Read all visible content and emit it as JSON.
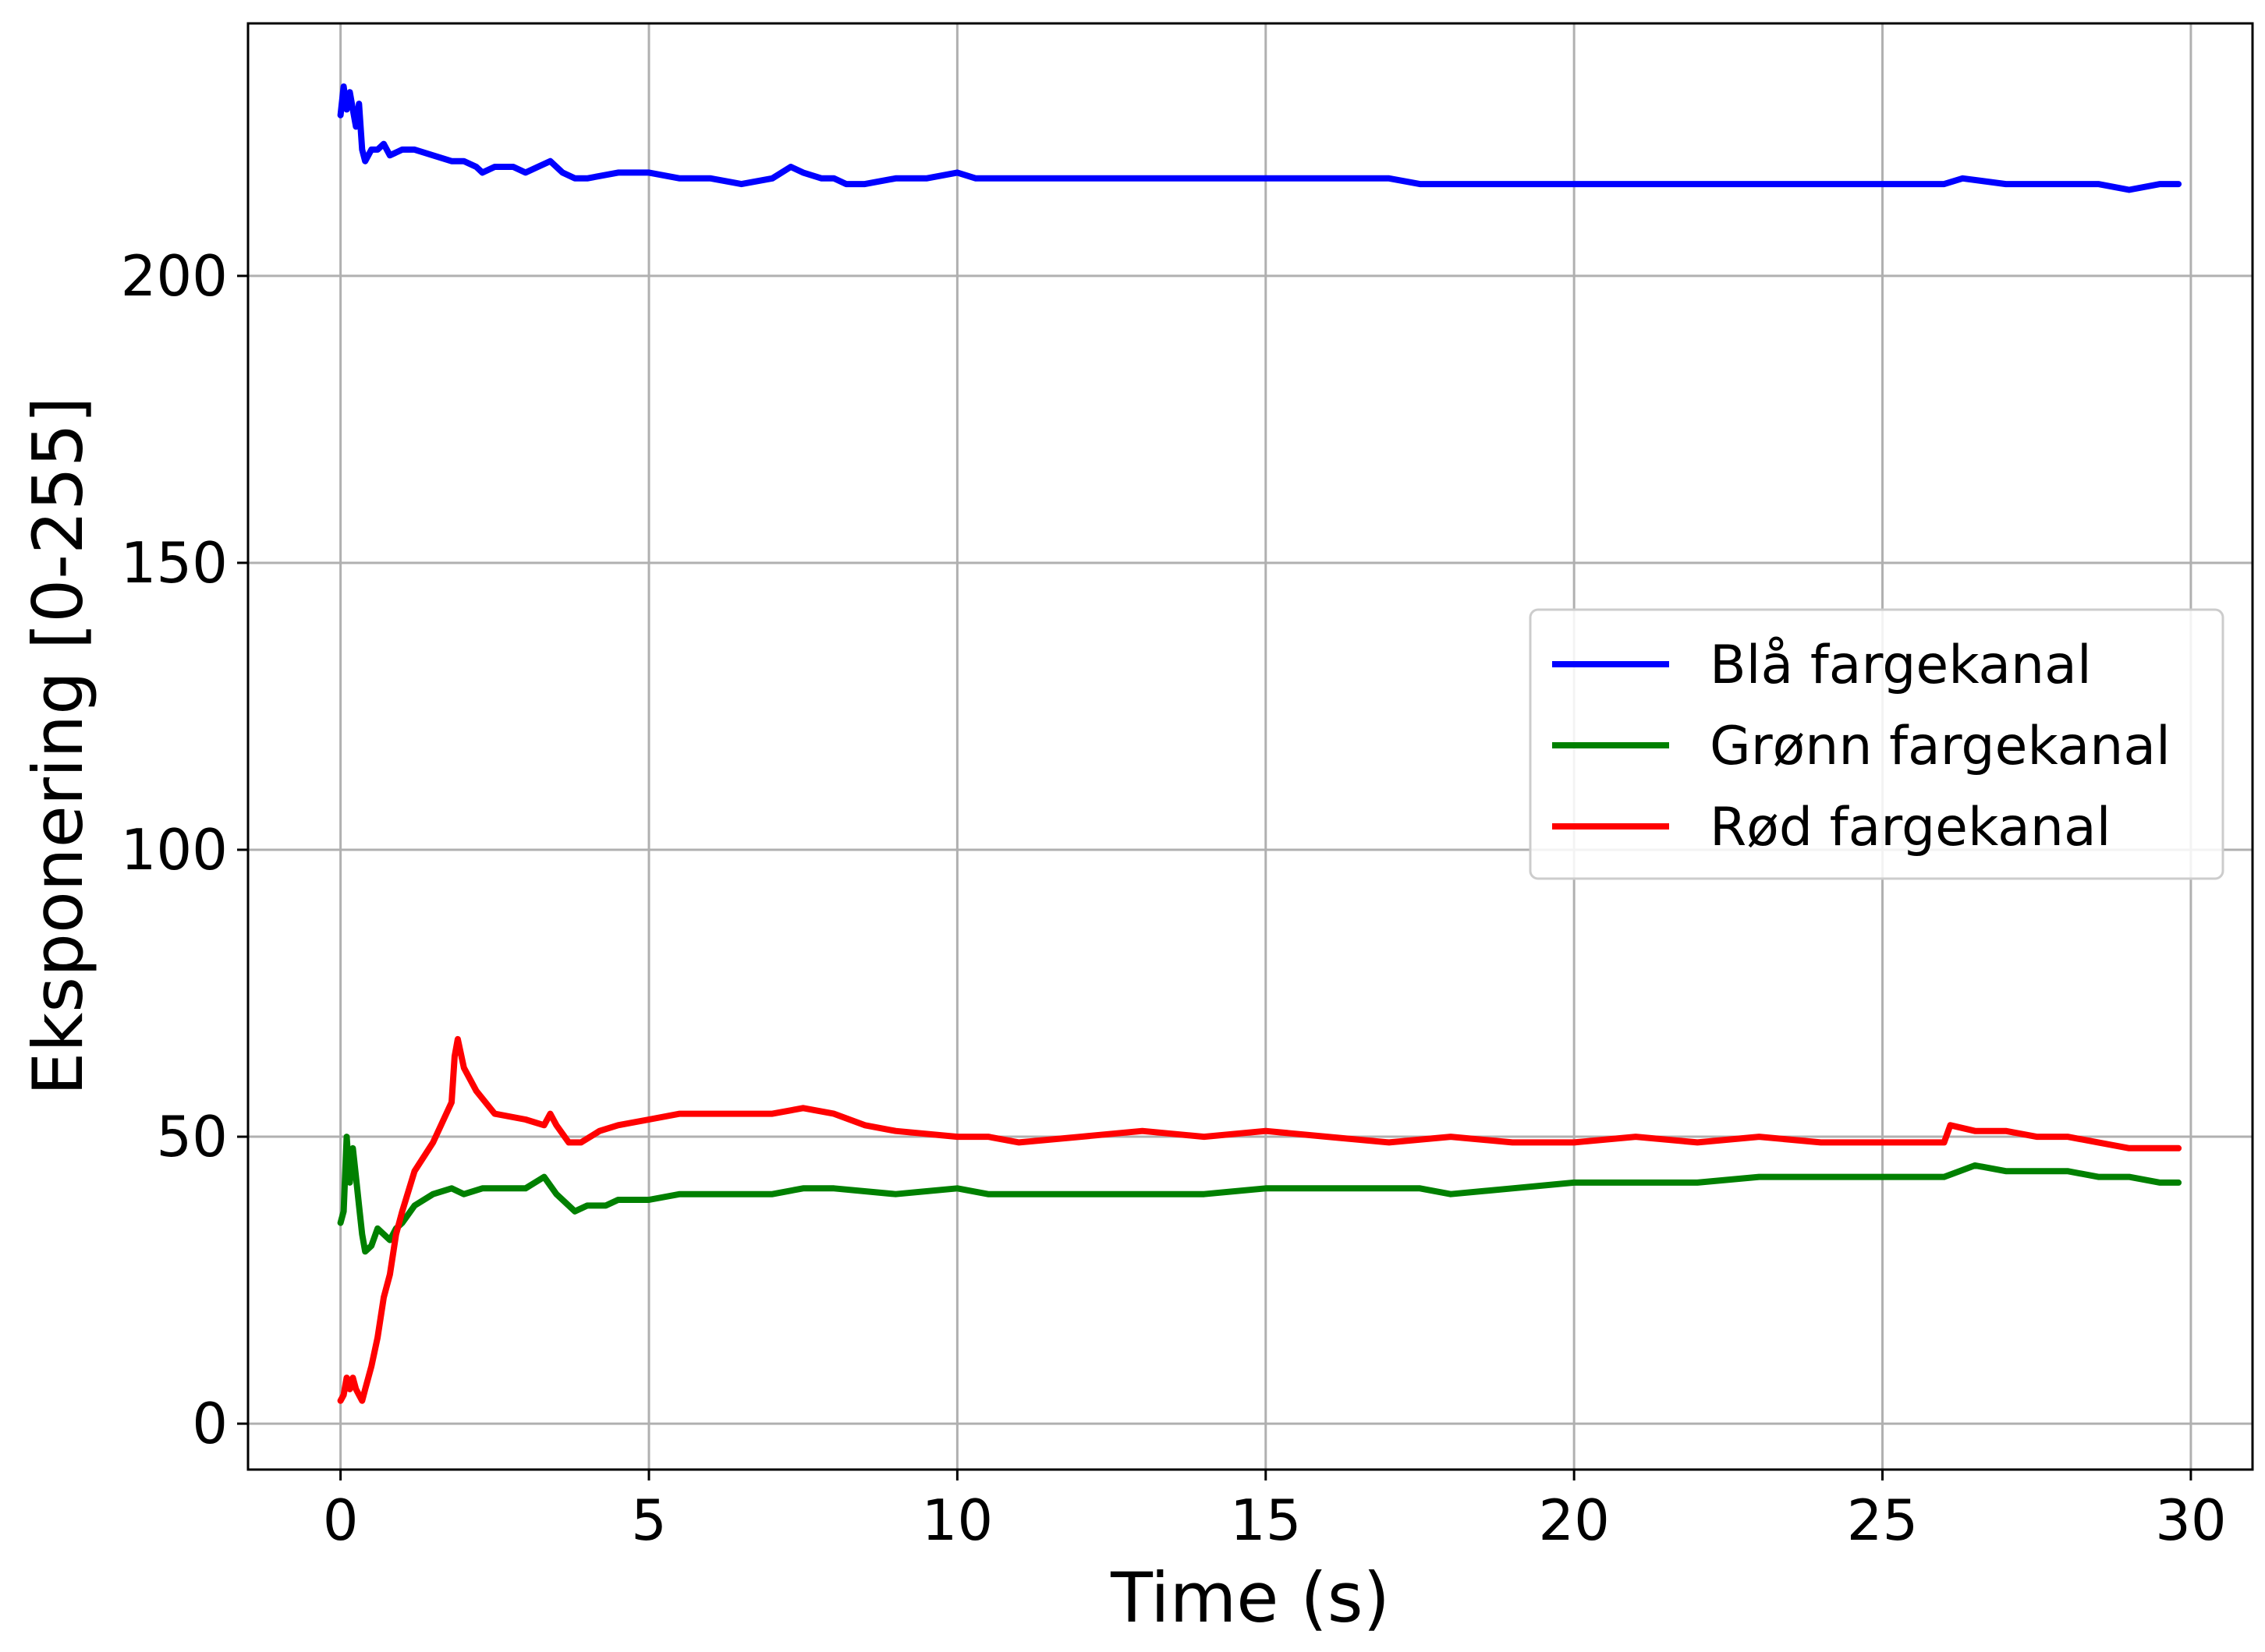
{
  "chart_data": {
    "type": "line",
    "xlabel": "Time (s)",
    "ylabel": "Eksponering [0-255]",
    "xlim": [
      -1.5,
      31.0
    ],
    "ylim": [
      -8,
      244
    ],
    "xticks": [
      0,
      5,
      10,
      15,
      20,
      25,
      30
    ],
    "yticks": [
      0,
      50,
      100,
      150,
      200
    ],
    "grid": true,
    "legend_position": "center-right",
    "series": [
      {
        "name": "Blå fargekanal",
        "color": "#0000ff",
        "x": [
          0,
          0.05,
          0.1,
          0.15,
          0.2,
          0.25,
          0.3,
          0.35,
          0.4,
          0.5,
          0.6,
          0.7,
          0.8,
          1.0,
          1.2,
          1.5,
          1.8,
          2.0,
          2.2,
          2.3,
          2.5,
          2.8,
          3.0,
          3.2,
          3.4,
          3.6,
          3.8,
          4.0,
          4.5,
          5.0,
          5.5,
          6.0,
          6.5,
          7.0,
          7.3,
          7.5,
          7.8,
          8.0,
          8.2,
          8.5,
          9.0,
          9.5,
          10.0,
          10.3,
          11,
          12,
          13,
          14,
          15,
          16,
          17,
          17.5,
          18,
          19,
          20,
          20.5,
          21,
          22,
          22.5,
          23,
          24,
          25,
          26,
          26.3,
          27,
          27.5,
          28,
          28.5,
          29,
          29.5,
          29.8
        ],
        "values": [
          228,
          233,
          229,
          232,
          229,
          226,
          230,
          222,
          220,
          222,
          222,
          223,
          221,
          222,
          222,
          221,
          220,
          220,
          219,
          218,
          219,
          219,
          218,
          219,
          220,
          218,
          217,
          217,
          218,
          218,
          217,
          217,
          216,
          217,
          219,
          218,
          217,
          217,
          216,
          216,
          217,
          217,
          218,
          217,
          217,
          217,
          217,
          217,
          217,
          217,
          217,
          216,
          216,
          216,
          216,
          216,
          216,
          216,
          216,
          216,
          216,
          216,
          216,
          217,
          216,
          216,
          216,
          216,
          215,
          216,
          216
        ]
      },
      {
        "name": "Grønn fargekanal",
        "color": "#008000",
        "x": [
          0,
          0.05,
          0.1,
          0.15,
          0.2,
          0.25,
          0.3,
          0.35,
          0.4,
          0.5,
          0.6,
          0.7,
          0.8,
          0.9,
          1.0,
          1.2,
          1.5,
          1.8,
          2.0,
          2.3,
          2.6,
          3.0,
          3.3,
          3.5,
          3.8,
          4.0,
          4.3,
          4.5,
          5.0,
          5.5,
          6.0,
          6.5,
          7.0,
          7.5,
          8.0,
          9.0,
          10.0,
          10.5,
          11,
          12,
          13,
          14,
          15,
          16,
          17,
          17.5,
          18,
          19,
          20,
          21,
          22,
          23,
          24,
          25,
          25.5,
          26,
          26.5,
          27,
          27.5,
          28,
          28.5,
          29,
          29.5,
          29.8
        ],
        "values": [
          35,
          37,
          50,
          42,
          48,
          43,
          38,
          33,
          30,
          31,
          34,
          33,
          32,
          34,
          35,
          38,
          40,
          41,
          40,
          41,
          41,
          41,
          43,
          40,
          37,
          38,
          38,
          39,
          39,
          40,
          40,
          40,
          40,
          41,
          41,
          40,
          41,
          40,
          40,
          40,
          40,
          40,
          41,
          41,
          41,
          41,
          40,
          41,
          42,
          42,
          42,
          43,
          43,
          43,
          43,
          43,
          45,
          44,
          44,
          44,
          43,
          43,
          42,
          42
        ]
      },
      {
        "name": "Rød fargekanal",
        "color": "#ff0000",
        "x": [
          0,
          0.05,
          0.1,
          0.15,
          0.2,
          0.25,
          0.3,
          0.35,
          0.4,
          0.5,
          0.6,
          0.7,
          0.8,
          0.9,
          1.0,
          1.2,
          1.5,
          1.8,
          1.85,
          1.9,
          2.0,
          2.2,
          2.5,
          3.0,
          3.3,
          3.4,
          3.5,
          3.7,
          3.9,
          4.2,
          4.5,
          5.0,
          5.5,
          6.0,
          6.5,
          7.0,
          7.5,
          8.0,
          8.5,
          9.0,
          10.0,
          10.5,
          11,
          12,
          13,
          14,
          15,
          16,
          17,
          18,
          19,
          20,
          21,
          22,
          23,
          24,
          25,
          26,
          26.1,
          26.5,
          27,
          27.5,
          28,
          28.5,
          29,
          29.5,
          29.8
        ],
        "values": [
          4,
          5,
          8,
          6,
          8,
          6,
          5,
          4,
          6,
          10,
          15,
          22,
          26,
          33,
          37,
          44,
          49,
          56,
          64,
          67,
          62,
          58,
          54,
          53,
          52,
          54,
          52,
          49,
          49,
          51,
          52,
          53,
          54,
          54,
          54,
          54,
          55,
          54,
          52,
          51,
          50,
          50,
          49,
          50,
          51,
          50,
          51,
          50,
          49,
          50,
          49,
          49,
          50,
          49,
          50,
          49,
          49,
          49,
          52,
          51,
          51,
          50,
          50,
          49,
          48,
          48,
          48
        ]
      }
    ]
  }
}
